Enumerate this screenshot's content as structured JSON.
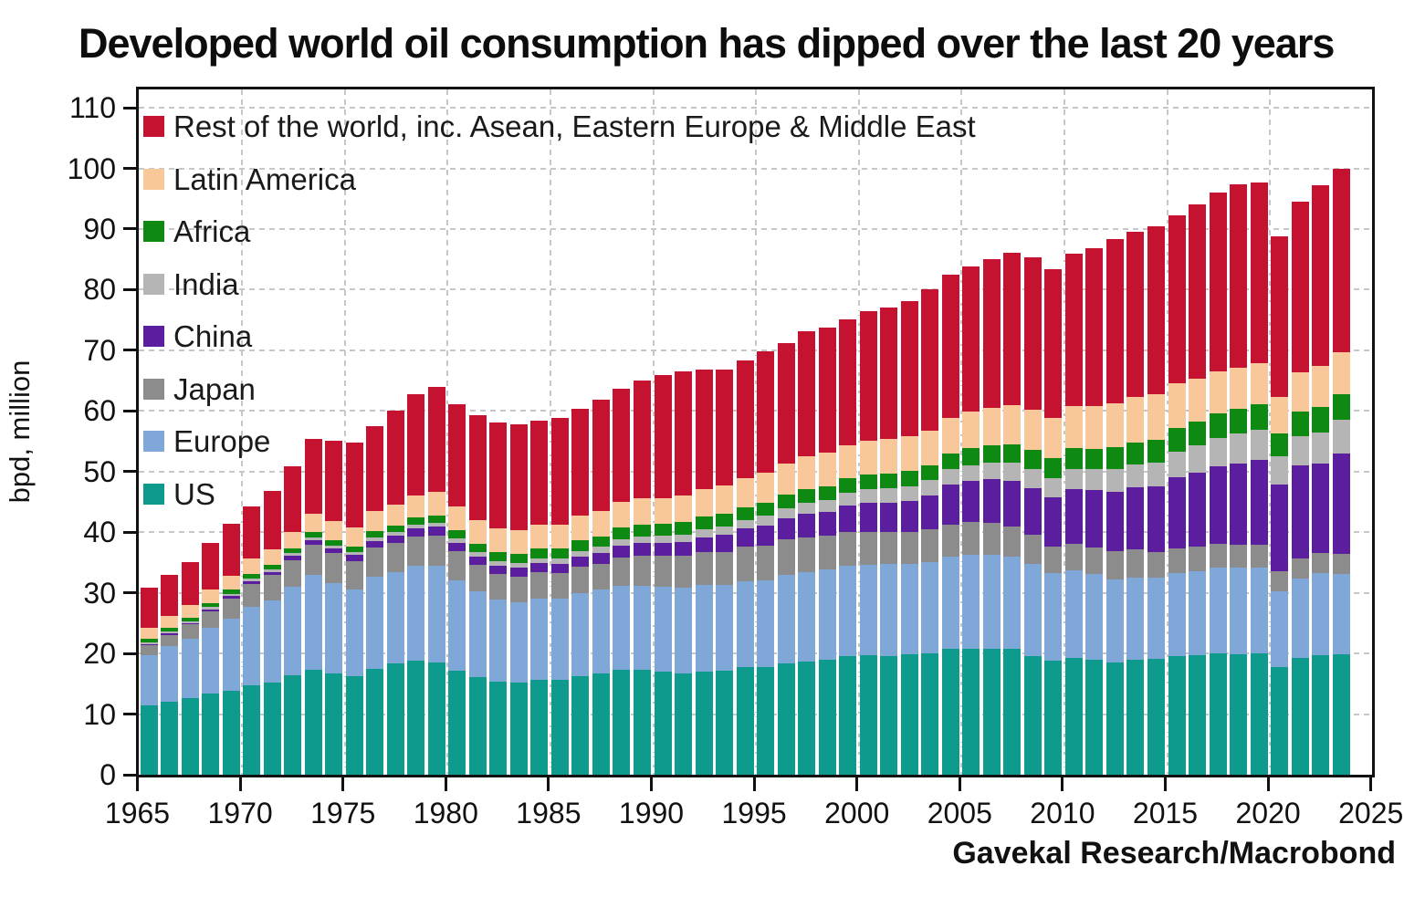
{
  "title": "Developed world oil consumption has dipped over the last 20 years",
  "source": "Gavekal Research/Macrobond",
  "chart_data": {
    "type": "bar",
    "stacked": true,
    "grid": true,
    "legend_position": "top-left-inside",
    "ylabel": "bpd, million",
    "xlabel": "",
    "ylim": [
      0,
      110
    ],
    "xlim": [
      1965,
      2025
    ],
    "y_ticks": [
      0,
      10,
      20,
      30,
      40,
      50,
      60,
      70,
      80,
      90,
      100,
      110
    ],
    "x_ticks": [
      1965,
      1970,
      1975,
      1980,
      1985,
      1990,
      1995,
      2000,
      2005,
      2010,
      2015,
      2020,
      2025
    ],
    "x_gridline_years": [
      1970,
      1975,
      1980,
      1985,
      1990,
      1995,
      2000,
      2005,
      2010,
      2015,
      2020
    ],
    "years": [
      1965,
      1966,
      1967,
      1968,
      1969,
      1970,
      1971,
      1972,
      1973,
      1974,
      1975,
      1976,
      1977,
      1978,
      1979,
      1980,
      1981,
      1982,
      1983,
      1984,
      1985,
      1986,
      1987,
      1988,
      1989,
      1990,
      1991,
      1992,
      1993,
      1994,
      1995,
      1996,
      1997,
      1998,
      1999,
      2000,
      2001,
      2002,
      2003,
      2004,
      2005,
      2006,
      2007,
      2008,
      2009,
      2010,
      2011,
      2012,
      2013,
      2014,
      2015,
      2016,
      2017,
      2018,
      2019,
      2020,
      2021,
      2022,
      2023
    ],
    "series": [
      {
        "id": "us",
        "label": "US",
        "color": "#0E9B8E",
        "values": [
          11.5,
          12.1,
          12.6,
          13.4,
          13.9,
          14.7,
          15.2,
          16.4,
          17.3,
          16.7,
          16.3,
          17.5,
          18.4,
          18.8,
          18.5,
          17.1,
          16.1,
          15.3,
          15.2,
          15.7,
          15.7,
          16.3,
          16.7,
          17.3,
          17.3,
          17.0,
          16.7,
          17.0,
          17.2,
          17.7,
          17.7,
          18.3,
          18.6,
          18.9,
          19.5,
          19.7,
          19.6,
          19.8,
          20.0,
          20.7,
          20.8,
          20.7,
          20.7,
          19.5,
          18.8,
          19.2,
          18.9,
          18.5,
          19.0,
          19.1,
          19.5,
          19.7,
          20.0,
          19.9,
          20.0,
          17.7,
          19.3,
          19.7,
          19.8
        ]
      },
      {
        "id": "europe",
        "label": "Europe",
        "color": "#7FA7D8",
        "values": [
          8.2,
          9.1,
          9.9,
          10.8,
          11.9,
          13.0,
          13.6,
          14.6,
          15.6,
          14.9,
          14.3,
          15.2,
          15.0,
          15.6,
          15.9,
          15.0,
          14.1,
          13.6,
          13.3,
          13.4,
          13.3,
          13.7,
          13.8,
          13.9,
          13.9,
          14.0,
          14.2,
          14.3,
          14.1,
          14.2,
          14.4,
          14.7,
          14.8,
          15.0,
          14.9,
          14.9,
          15.1,
          15.0,
          15.1,
          15.3,
          15.5,
          15.6,
          15.3,
          15.3,
          14.5,
          14.5,
          14.2,
          13.7,
          13.5,
          13.4,
          13.7,
          13.9,
          14.1,
          14.2,
          14.1,
          12.5,
          13.1,
          13.5,
          13.3
        ]
      },
      {
        "id": "japan",
        "label": "Japan",
        "color": "#8C8C8C",
        "values": [
          1.6,
          1.9,
          2.3,
          2.8,
          3.3,
          3.8,
          4.1,
          4.4,
          5.0,
          4.9,
          4.6,
          4.8,
          4.9,
          4.9,
          5.0,
          4.7,
          4.4,
          4.2,
          4.2,
          4.3,
          4.2,
          4.3,
          4.3,
          4.6,
          4.9,
          5.1,
          5.2,
          5.4,
          5.4,
          5.7,
          5.7,
          5.8,
          5.8,
          5.5,
          5.6,
          5.5,
          5.4,
          5.3,
          5.4,
          5.3,
          5.4,
          5.2,
          5.0,
          4.8,
          4.4,
          4.4,
          4.4,
          4.7,
          4.6,
          4.3,
          4.2,
          4.0,
          4.0,
          3.9,
          3.8,
          3.3,
          3.3,
          3.4,
          3.3
        ]
      },
      {
        "id": "china",
        "label": "China",
        "color": "#5B1E9E",
        "values": [
          0.2,
          0.25,
          0.25,
          0.3,
          0.35,
          0.45,
          0.55,
          0.65,
          0.8,
          0.85,
          1.0,
          1.1,
          1.2,
          1.4,
          1.5,
          1.5,
          1.4,
          1.4,
          1.4,
          1.5,
          1.6,
          1.7,
          1.8,
          2.0,
          2.1,
          2.1,
          2.3,
          2.5,
          2.9,
          3.0,
          3.3,
          3.5,
          3.9,
          4.0,
          4.4,
          4.7,
          4.8,
          5.1,
          5.6,
          6.5,
          6.7,
          7.2,
          7.5,
          7.7,
          8.0,
          9.0,
          9.4,
          9.8,
          10.3,
          10.8,
          11.7,
          12.2,
          12.8,
          13.3,
          14.0,
          14.4,
          15.3,
          14.7,
          16.6
        ]
      },
      {
        "id": "india",
        "label": "India",
        "color": "#B5B5B5",
        "values": [
          0.3,
          0.3,
          0.3,
          0.35,
          0.35,
          0.4,
          0.4,
          0.45,
          0.45,
          0.45,
          0.5,
          0.5,
          0.55,
          0.6,
          0.65,
          0.65,
          0.7,
          0.7,
          0.75,
          0.8,
          0.9,
          0.95,
          1.0,
          1.1,
          1.15,
          1.2,
          1.25,
          1.3,
          1.35,
          1.45,
          1.6,
          1.7,
          1.8,
          1.9,
          2.1,
          2.25,
          2.3,
          2.4,
          2.45,
          2.55,
          2.6,
          2.75,
          2.95,
          3.1,
          3.25,
          3.3,
          3.5,
          3.7,
          3.75,
          3.85,
          4.15,
          4.55,
          4.7,
          5.0,
          5.05,
          4.6,
          4.9,
          5.2,
          5.5
        ]
      },
      {
        "id": "africa",
        "label": "Africa",
        "color": "#0E8A12",
        "values": [
          0.6,
          0.6,
          0.6,
          0.65,
          0.7,
          0.75,
          0.8,
          0.85,
          0.9,
          0.95,
          1.0,
          1.05,
          1.1,
          1.2,
          1.25,
          1.35,
          1.45,
          1.55,
          1.6,
          1.65,
          1.65,
          1.7,
          1.75,
          1.85,
          1.9,
          1.95,
          2.0,
          2.05,
          2.1,
          2.1,
          2.15,
          2.2,
          2.25,
          2.3,
          2.35,
          2.45,
          2.5,
          2.5,
          2.55,
          2.7,
          2.85,
          2.9,
          3.1,
          3.2,
          3.3,
          3.45,
          3.35,
          3.6,
          3.7,
          3.8,
          3.9,
          3.9,
          4.0,
          4.1,
          4.15,
          3.75,
          3.95,
          4.1,
          4.25
        ]
      },
      {
        "id": "latin-america",
        "label": "Latin America",
        "color": "#F8C89B",
        "values": [
          1.9,
          2.0,
          2.1,
          2.25,
          2.35,
          2.5,
          2.6,
          2.75,
          2.95,
          3.1,
          3.15,
          3.3,
          3.45,
          3.6,
          3.8,
          3.9,
          3.85,
          3.9,
          3.85,
          3.9,
          3.95,
          4.1,
          4.2,
          4.3,
          4.3,
          4.3,
          4.4,
          4.5,
          4.65,
          4.8,
          4.95,
          5.1,
          5.35,
          5.5,
          5.55,
          5.65,
          5.75,
          5.7,
          5.65,
          5.8,
          6.0,
          6.2,
          6.45,
          6.65,
          6.6,
          6.95,
          7.1,
          7.25,
          7.4,
          7.45,
          7.35,
          7.1,
          7.0,
          6.8,
          6.75,
          6.1,
          6.5,
          6.8,
          6.9
        ]
      },
      {
        "id": "rest-of-world",
        "label": "Rest of the world, inc. Asean, Eastern Europe & Middle East",
        "color": "#C41230",
        "values": [
          6.5,
          6.75,
          7.05,
          7.65,
          8.55,
          8.6,
          9.55,
          10.7,
          12.4,
          13.3,
          13.9,
          14.1,
          15.4,
          16.7,
          17.3,
          16.9,
          17.3,
          17.45,
          17.5,
          17.15,
          17.5,
          17.55,
          18.25,
          18.65,
          19.45,
          20.25,
          20.55,
          19.85,
          19.2,
          19.45,
          20.0,
          19.9,
          20.7,
          20.6,
          20.7,
          21.25,
          21.55,
          22.3,
          23.25,
          23.65,
          24.05,
          24.45,
          25.1,
          25.05,
          24.55,
          25.2,
          25.95,
          27.05,
          27.25,
          27.7,
          27.7,
          28.65,
          29.4,
          30.2,
          29.85,
          26.45,
          28.15,
          29.8,
          30.25
        ]
      }
    ]
  }
}
